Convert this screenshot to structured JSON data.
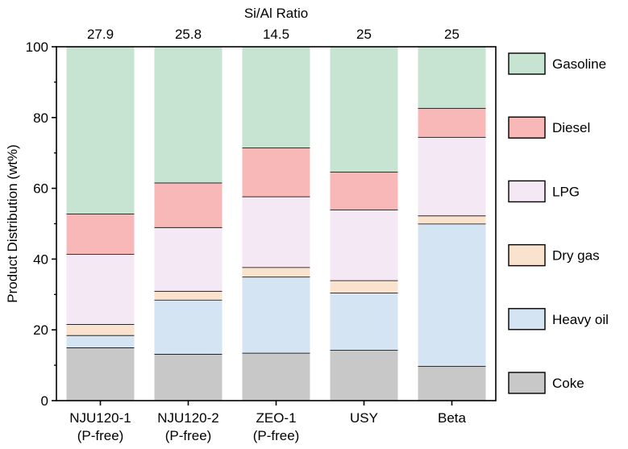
{
  "chart_data": {
    "type": "bar",
    "stacked": true,
    "title": "",
    "top_axis_label": "Si/Al Ratio",
    "top_tick_labels": [
      "27.9",
      "25.8",
      "14.5",
      "25",
      "25"
    ],
    "categories": [
      [
        "NJU120-1",
        "(P-free)"
      ],
      [
        "NJU120-2",
        "(P-free)"
      ],
      [
        "ZEO-1",
        "(P-free)"
      ],
      [
        "USY"
      ],
      [
        "Beta"
      ]
    ],
    "xlabel": "",
    "ylabel": "Product Distribution (wt%)",
    "ylim": [
      0,
      100
    ],
    "yticks": [
      0,
      20,
      40,
      60,
      80,
      100
    ],
    "grid": false,
    "legend_placement": "right",
    "series": [
      {
        "name": "Coke",
        "color": "#c8c8c8",
        "values": [
          15.0,
          13.2,
          13.5,
          14.3,
          9.8
        ]
      },
      {
        "name": "Heavy oil",
        "color": "#d4e4f2",
        "values": [
          3.5,
          15.3,
          21.5,
          16.2,
          40.2
        ]
      },
      {
        "name": "Dry gas",
        "color": "#fae3ce",
        "values": [
          3.1,
          2.5,
          2.7,
          3.5,
          2.3
        ]
      },
      {
        "name": "LPG",
        "color": "#f4e8f4",
        "values": [
          19.8,
          18.0,
          20.0,
          20.0,
          22.2
        ]
      },
      {
        "name": "Diesel",
        "color": "#f8b8b8",
        "values": [
          11.4,
          12.6,
          13.8,
          10.7,
          8.2
        ]
      },
      {
        "name": "Gasoline",
        "color": "#c7e4d3",
        "values": [
          47.2,
          38.4,
          28.5,
          35.3,
          17.3
        ]
      }
    ]
  }
}
